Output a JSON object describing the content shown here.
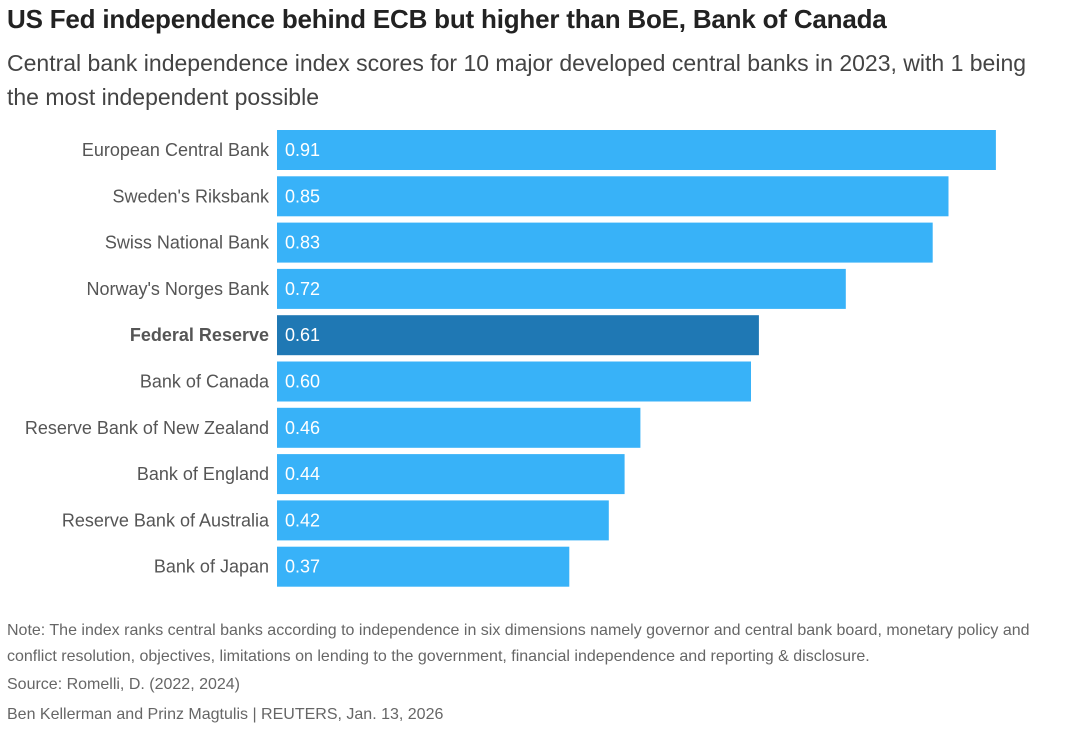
{
  "title": "US Fed independence behind ECB but higher than BoE, Bank of Canada",
  "subtitle": "Central bank independence index scores for 10 major developed central banks in 2023, with 1 being the most independent possible",
  "note": "Note: The index ranks central banks according to independence in six dimensions namely governor and central bank board, monetary policy and conflict resolution, objectives, limitations on lending to the government, financial independence and reporting & disclosure.",
  "source": "Source: Romelli, D. (2022, 2024)",
  "byline": "Ben Kellerman and Prinz Magtulis | REUTERS, Jan. 13, 2026",
  "colors": {
    "bar": "#38b2f8",
    "highlight": "#1f78b4"
  },
  "chart_data": {
    "type": "bar",
    "orientation": "horizontal",
    "categories": [
      "European Central Bank",
      "Sweden's Riksbank",
      "Swiss National Bank",
      "Norway's Norges Bank",
      "Federal Reserve",
      "Bank of Canada",
      "Reserve Bank of New Zealand",
      "Bank of England",
      "Reserve Bank of Australia",
      "Bank of Japan"
    ],
    "values": [
      0.91,
      0.85,
      0.83,
      0.72,
      0.61,
      0.6,
      0.46,
      0.44,
      0.42,
      0.37
    ],
    "value_labels": [
      "0.91",
      "0.85",
      "0.83",
      "0.72",
      "0.61",
      "0.60",
      "0.46",
      "0.44",
      "0.42",
      "0.37"
    ],
    "highlight": "Federal Reserve",
    "xlim": [
      0,
      1
    ],
    "grid": false,
    "legend": "none"
  }
}
